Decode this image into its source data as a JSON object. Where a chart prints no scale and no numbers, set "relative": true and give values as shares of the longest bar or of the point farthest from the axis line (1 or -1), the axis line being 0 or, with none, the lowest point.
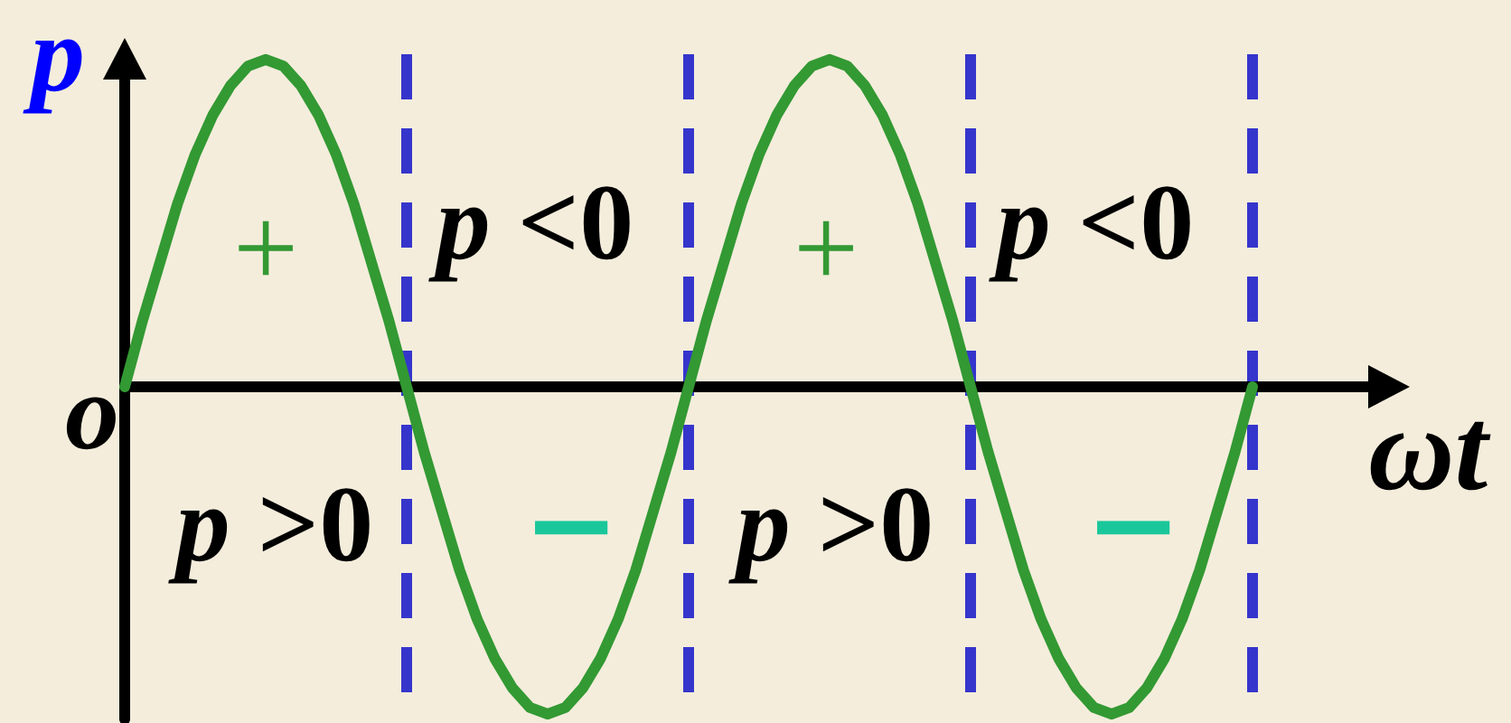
{
  "chart_data": {
    "type": "line",
    "relative": true,
    "xlabel": "ωt",
    "ylabel": "p",
    "categories": [
      null,
      null,
      null,
      null,
      null,
      null,
      null,
      null,
      null,
      null,
      null,
      null,
      null,
      null,
      null,
      null,
      null,
      null,
      null,
      null,
      null,
      null,
      null,
      null,
      null,
      null,
      null,
      null,
      null,
      null,
      null,
      null,
      null,
      null,
      null,
      null,
      null,
      null,
      null,
      null,
      null,
      null,
      null,
      null,
      null,
      null,
      null,
      null,
      null,
      null,
      null,
      null,
      null,
      null,
      null,
      null,
      null,
      null,
      null,
      null,
      null,
      null,
      null,
      null,
      null,
      null,
      null,
      null,
      null,
      null,
      null,
      null,
      null
    ],
    "values": [
      0,
      0.2,
      0.38,
      0.56,
      0.71,
      0.83,
      0.92,
      0.98,
      1,
      0.98,
      0.92,
      0.83,
      0.71,
      0.56,
      0.38,
      0.2,
      0,
      -0.2,
      -0.38,
      -0.56,
      -0.71,
      -0.83,
      -0.92,
      -0.98,
      -1,
      -0.98,
      -0.92,
      -0.83,
      -0.71,
      -0.56,
      -0.38,
      -0.2,
      0,
      0.2,
      0.38,
      0.56,
      0.71,
      0.83,
      0.92,
      0.98,
      1,
      0.98,
      0.92,
      0.83,
      0.71,
      0.56,
      0.38,
      0.2,
      0,
      -0.2,
      -0.38,
      -0.56,
      -0.71,
      -0.83,
      -0.92,
      -0.98,
      -1,
      -0.98,
      -0.92,
      -0.83,
      -0.71,
      -0.56,
      -0.38,
      -0.2,
      0,
      null,
      null,
      null,
      null,
      null,
      null,
      null,
      null
    ],
    "color": "#339933",
    "marker": "none",
    "line_style": "solid",
    "tick_labels": false,
    "grid": "x",
    "annotations": [
      "o",
      "+",
      "p <0",
      "+",
      "p <0",
      "p >0",
      "−",
      "p >0",
      "−"
    ]
  }
}
